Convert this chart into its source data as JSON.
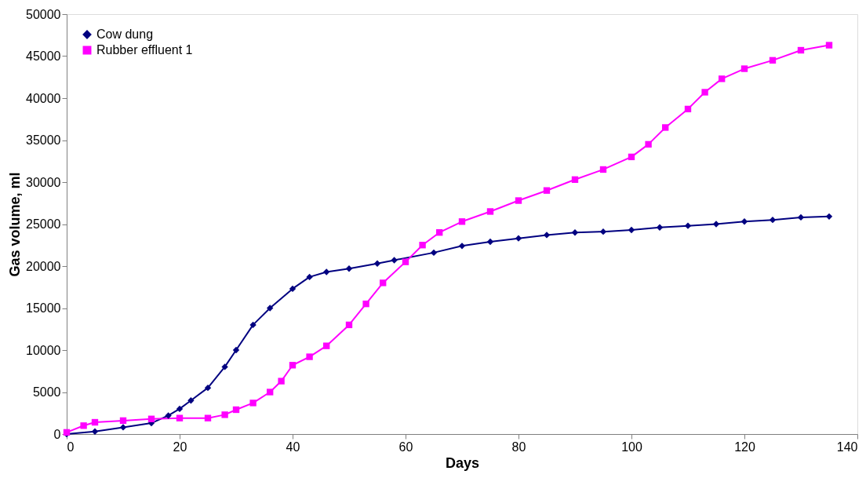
{
  "chart_data": {
    "type": "line",
    "xlabel": "Days",
    "ylabel": "Gas volume, ml",
    "xlim": [
      0,
      140
    ],
    "xticks": [
      0,
      20,
      40,
      60,
      80,
      100,
      120,
      140
    ],
    "ylim": [
      0,
      50000
    ],
    "yticks": [
      0,
      5000,
      10000,
      15000,
      20000,
      25000,
      30000,
      35000,
      40000,
      45000,
      50000
    ],
    "grid": false,
    "legend": "top left",
    "line_style": "solid",
    "series": [
      {
        "name": "Cow dung",
        "color": "#000080",
        "marker": "diamond",
        "x": [
          0,
          5,
          10,
          15,
          18,
          20,
          22,
          25,
          28,
          30,
          33,
          36,
          40,
          43,
          46,
          50,
          55,
          58,
          65,
          70,
          75,
          80,
          85,
          90,
          95,
          100,
          105,
          110,
          115,
          120,
          125,
          130,
          135
        ],
        "values": [
          0,
          300,
          800,
          1300,
          2200,
          3000,
          4000,
          5500,
          8000,
          10000,
          13000,
          15000,
          17300,
          18700,
          19300,
          19700,
          20300,
          20700,
          21600,
          22400,
          22900,
          23300,
          23700,
          24000,
          24100,
          24300,
          24600,
          24800,
          25000,
          25300,
          25500,
          25800,
          25900
        ]
      },
      {
        "name": "Rubber effluent 1",
        "color": "#ff00ff",
        "marker": "square",
        "x": [
          0,
          3,
          5,
          10,
          15,
          20,
          25,
          28,
          30,
          33,
          36,
          38,
          40,
          43,
          46,
          50,
          53,
          56,
          60,
          63,
          66,
          70,
          75,
          80,
          85,
          90,
          95,
          100,
          103,
          106,
          110,
          113,
          116,
          120,
          125,
          130,
          135
        ],
        "values": [
          200,
          1000,
          1400,
          1600,
          1800,
          1900,
          1900,
          2300,
          2900,
          3700,
          5000,
          6300,
          8200,
          9200,
          10500,
          13000,
          15500,
          18000,
          20500,
          22500,
          24000,
          25300,
          26500,
          27800,
          29000,
          30300,
          31500,
          33000,
          34500,
          36500,
          38700,
          40700,
          42300,
          43500,
          44500,
          45700,
          46300
        ]
      }
    ]
  }
}
